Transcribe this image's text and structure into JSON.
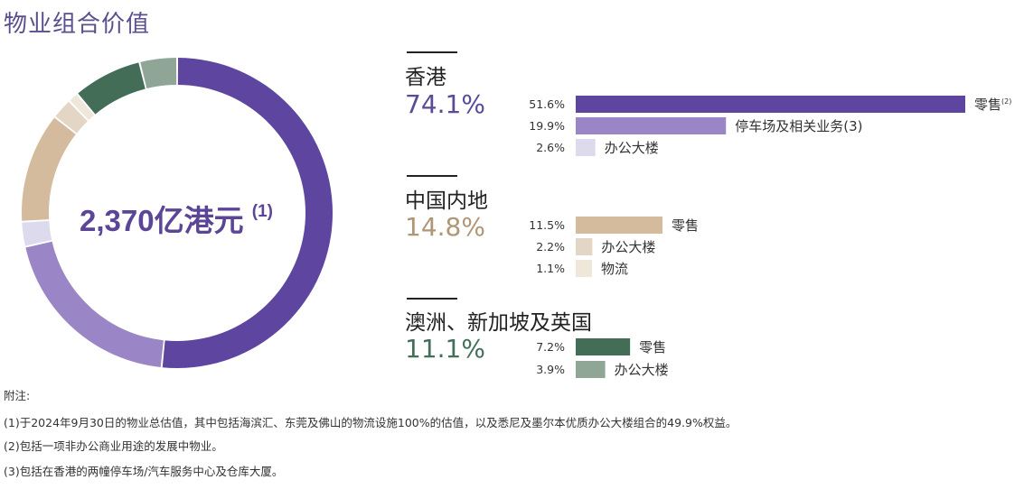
{
  "title": "物业组合价值",
  "chart_data": [
    {
      "type": "pie",
      "variant": "donut",
      "center_label": "2,370亿港元",
      "center_label_note": "(1)",
      "slices": [
        {
          "label": "香港 零售",
          "value": 51.6,
          "color": "#5e46a0"
        },
        {
          "label": "香港 停车场及相关业务",
          "value": 19.9,
          "color": "#9a86c6"
        },
        {
          "label": "香港 办公大楼",
          "value": 2.6,
          "color": "#dedaee"
        },
        {
          "label": "中国内地 零售",
          "value": 11.5,
          "color": "#d4bb9d"
        },
        {
          "label": "中国内地 办公大楼",
          "value": 2.2,
          "color": "#e4d6c4"
        },
        {
          "label": "中国内地 物流",
          "value": 1.1,
          "color": "#efe7da"
        },
        {
          "label": "澳洲、新加坡及英国 零售",
          "value": 7.2,
          "color": "#446d58"
        },
        {
          "label": "澳洲、新加坡及英国 办公大楼",
          "value": 3.9,
          "color": "#8fa596"
        }
      ]
    },
    {
      "type": "bar",
      "orientation": "horizontal",
      "xlim": [
        0,
        51.6
      ],
      "groups": [
        {
          "name": "香港",
          "total": "74.1%",
          "total_color": "#5a4a99",
          "bars": [
            {
              "value": 51.6,
              "value_label": "51.6%",
              "label": "零售",
              "note": "(2)",
              "color": "#5e46a0"
            },
            {
              "value": 19.9,
              "value_label": "19.9%",
              "label": "停车场及相关业务(3)",
              "color": "#9a86c6"
            },
            {
              "value": 2.6,
              "value_label": "2.6%",
              "label": "办公大楼",
              "color": "#dedaee"
            }
          ]
        },
        {
          "name": "中国内地",
          "total": "14.8%",
          "total_color": "#b19676",
          "bars": [
            {
              "value": 11.5,
              "value_label": "11.5%",
              "label": "零售",
              "color": "#d4bb9d"
            },
            {
              "value": 2.2,
              "value_label": "2.2%",
              "label": "办公大楼",
              "color": "#e4d6c4"
            },
            {
              "value": 1.1,
              "value_label": "1.1%",
              "label": "物流",
              "color": "#efe7da"
            }
          ]
        },
        {
          "name": "澳洲、新加坡及英国",
          "total": "11.1%",
          "total_color": "#43705b",
          "bars": [
            {
              "value": 7.2,
              "value_label": "7.2%",
              "label": "零售",
              "color": "#446d58"
            },
            {
              "value": 3.9,
              "value_label": "3.9%",
              "label": "办公大楼",
              "color": "#8fa596"
            }
          ]
        }
      ]
    }
  ],
  "notes": {
    "heading": "附注:",
    "lines": [
      "(1)于2024年9月30日的物业总估值，其中包括海滨汇、东莞及佛山的物流设施100%的估值，以及悉尼及墨尔本优质办公大楼组合的49.9%权益。",
      "(2)包括一项非办公商业用途的发展中物业。",
      "(3)包括在香港的两幢停车场/汽车服务中心及仓库大厦。"
    ]
  }
}
